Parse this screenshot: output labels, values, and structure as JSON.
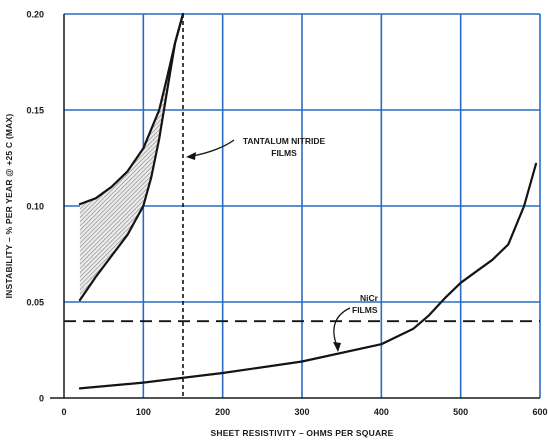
{
  "chart_data": {
    "type": "line",
    "title": "",
    "xlabel": "SHEET RESISTIVITY – OHMS PER SQUARE",
    "ylabel": "INSTABILITY – % PER YEAR @ +25 C (MAX)",
    "xlim": [
      0,
      600
    ],
    "ylim": [
      0,
      0.2
    ],
    "x_ticks": [
      "0",
      "100",
      "200",
      "300",
      "400",
      "500",
      "600"
    ],
    "y_ticks": [
      "0",
      "0.05",
      "0.10",
      "0.15",
      "0.20"
    ],
    "x_tick_values": [
      0,
      100,
      200,
      300,
      400,
      500,
      600
    ],
    "y_tick_values": [
      0,
      0.05,
      0.1,
      0.15,
      0.2
    ],
    "grid": true,
    "grid_color": "#2a6cc4",
    "series": [
      {
        "name": "TANTALUM NITRIDE FILMS (upper bound)",
        "x": [
          20,
          40,
          60,
          80,
          100,
          120,
          130,
          140,
          150
        ],
        "y": [
          0.101,
          0.104,
          0.11,
          0.118,
          0.13,
          0.15,
          0.167,
          0.185,
          0.2
        ]
      },
      {
        "name": "TANTALUM NITRIDE FILMS (lower bound)",
        "x": [
          20,
          40,
          60,
          80,
          100,
          110,
          120,
          130,
          140,
          150
        ],
        "y": [
          0.051,
          0.063,
          0.074,
          0.085,
          0.1,
          0.115,
          0.135,
          0.16,
          0.185,
          0.2
        ]
      },
      {
        "name": "NiCr FILMS",
        "x": [
          20,
          100,
          200,
          300,
          400,
          440,
          460,
          480,
          500,
          520,
          540,
          560,
          580,
          595
        ],
        "y": [
          0.005,
          0.008,
          0.013,
          0.019,
          0.028,
          0.036,
          0.043,
          0.052,
          0.06,
          0.066,
          0.072,
          0.08,
          0.1,
          0.122
        ]
      }
    ],
    "shaded_region": "between tantalum nitride upper and lower bounds",
    "reference_lines": [
      {
        "orientation": "horizontal",
        "style": "dashed",
        "y": 0.04
      },
      {
        "orientation": "vertical",
        "style": "dashed",
        "x": 150
      }
    ],
    "annotations": [
      {
        "text_lines": [
          "TANTALUM NITRIDE",
          "FILMS"
        ]
      },
      {
        "text_lines": [
          "NiCr",
          "FILMS"
        ]
      }
    ],
    "colors": {
      "curve": "#141414",
      "grid": "#2a6cc4",
      "shade": "#9a9a9a"
    }
  }
}
